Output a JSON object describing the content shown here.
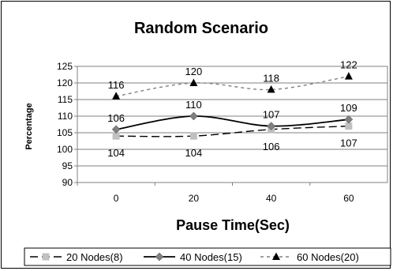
{
  "chart_data": {
    "type": "line",
    "title": "Random Scenario",
    "xlabel": "Pause Time(Sec)",
    "ylabel": "Percentage",
    "categories": [
      "0",
      "20",
      "40",
      "60"
    ],
    "ylim": [
      90,
      125
    ],
    "yticks": [
      "90",
      "95",
      "100",
      "105",
      "110",
      "115",
      "120",
      "125"
    ],
    "grid": true,
    "legend": "bottom",
    "series": [
      {
        "name": "20 Nodes(8)",
        "values": [
          104,
          104,
          106,
          107
        ],
        "color": "#000000",
        "marker": "square",
        "marker_color": "#c0c0c0",
        "line": "dashed",
        "labels": [
          "104",
          "104",
          "106",
          "107"
        ]
      },
      {
        "name": "40 Nodes(15)",
        "values": [
          106,
          110,
          107,
          109
        ],
        "color": "#000000",
        "marker": "diamond",
        "marker_color": "#808080",
        "line": "solid",
        "labels": [
          "106",
          "110",
          "107",
          "109"
        ]
      },
      {
        "name": "60 Nodes(20)",
        "values": [
          116,
          120,
          118,
          122
        ],
        "color": "#808080",
        "marker": "triangle",
        "marker_color": "#000000",
        "line": "dotted",
        "labels": [
          "116",
          "120",
          "118",
          "122"
        ]
      }
    ]
  }
}
